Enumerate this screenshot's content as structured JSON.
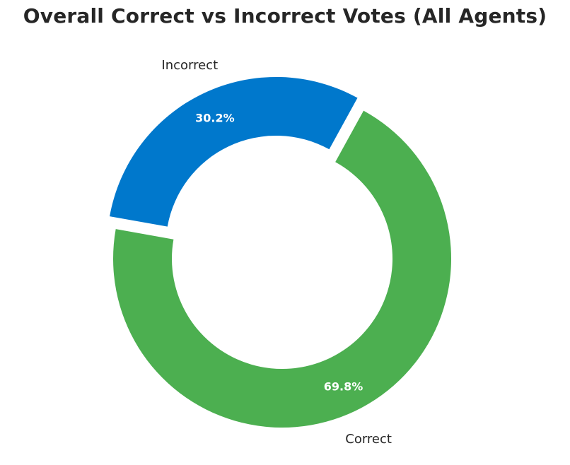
{
  "chart_data": {
    "type": "pie",
    "title": "Overall Correct vs Incorrect Votes (All Agents)",
    "donut": true,
    "start_angle_deg": 61.2,
    "direction": "counterclockwise",
    "slices": [
      {
        "label": "Incorrect",
        "value": 30.2,
        "display": "30.2%",
        "color": "#0078CC",
        "exploded": true
      },
      {
        "label": "Correct",
        "value": 69.8,
        "display": "69.8%",
        "color": "#4CAF50",
        "exploded": false
      }
    ]
  }
}
